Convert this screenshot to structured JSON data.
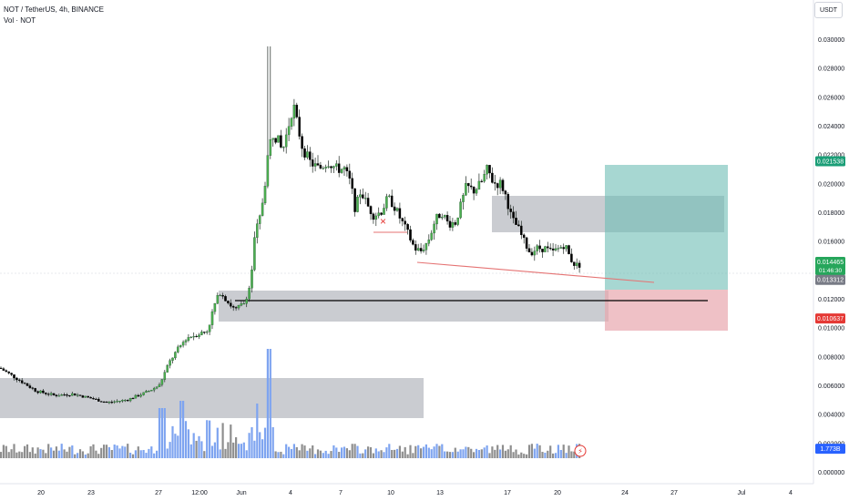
{
  "header": {
    "symbol_line": "NOT / TetherUS, 4h, BINANCE",
    "volume_line": "Vol · NOT"
  },
  "unit_button": "USDT",
  "colors": {
    "up": "#ffffff",
    "up_outline": "#1e4d2b",
    "up_fill": "#4caf50",
    "down": "#000000",
    "vol_up": "#7ea4f0",
    "vol_down": "#8e8e8e",
    "zone": "#8a8f99",
    "target": "#6cbdb4",
    "stop": "#e8a6ae",
    "trendline": "#e57373"
  },
  "price_axis": {
    "ticks": [
      "0.030000",
      "0.028000",
      "0.026000",
      "0.024000",
      "0.022000",
      "0.020000",
      "0.018000",
      "0.016000",
      "0.014000",
      "0.012000",
      "0.010000",
      "0.008000",
      "0.006000",
      "0.004000",
      "0.002000",
      "0.000000"
    ],
    "badges": [
      {
        "label": "0.021538",
        "value": 0.021538,
        "color": "#1b9e77"
      },
      {
        "label": "0.014465",
        "sub": "01:46:30",
        "value": 0.014465,
        "color": "#26a65b"
      },
      {
        "label": "0.013312",
        "value": 0.013312,
        "color": "#787b86"
      },
      {
        "label": "0.010637",
        "value": 0.010637,
        "color": "#e53935"
      },
      {
        "label": "1.773B",
        "value": 0.0016,
        "color": "#2962ff"
      }
    ]
  },
  "time_axis": {
    "ticks": [
      "20",
      "23",
      "27",
      "12:00",
      "Jun",
      "4",
      "7",
      "10",
      "13",
      "17",
      "20",
      "24",
      "27",
      "Jul",
      "4"
    ]
  },
  "chart_data": {
    "type": "candlestick",
    "title": "NOT / TetherUS, 4h, BINANCE",
    "ylim": [
      0,
      0.031
    ],
    "key_prices": [
      {
        "name": "target",
        "value": 0.021538
      },
      {
        "name": "entry",
        "value": 0.013312
      },
      {
        "name": "stop",
        "value": 0.010637
      },
      {
        "name": "last",
        "value": 0.014465
      }
    ],
    "price_path": [
      [
        0,
        0.0072
      ],
      [
        20,
        0.0064
      ],
      [
        40,
        0.0056
      ],
      [
        60,
        0.0053
      ],
      [
        80,
        0.0054
      ],
      [
        100,
        0.0051
      ],
      [
        118,
        0.0048
      ],
      [
        140,
        0.005
      ],
      [
        160,
        0.0055
      ],
      [
        175,
        0.006
      ],
      [
        185,
        0.0075
      ],
      [
        195,
        0.0085
      ],
      [
        205,
        0.0093
      ],
      [
        215,
        0.0095
      ],
      [
        228,
        0.0098
      ],
      [
        235,
        0.0115
      ],
      [
        242,
        0.0125
      ],
      [
        250,
        0.0118
      ],
      [
        258,
        0.0112
      ],
      [
        268,
        0.0117
      ],
      [
        275,
        0.013
      ],
      [
        280,
        0.0165
      ],
      [
        285,
        0.0175
      ],
      [
        290,
        0.0195
      ],
      [
        295,
        0.0225
      ],
      [
        300,
        0.0235
      ],
      [
        305,
        0.023
      ],
      [
        310,
        0.0222
      ],
      [
        316,
        0.0238
      ],
      [
        322,
        0.0255
      ],
      [
        326,
        0.0242
      ],
      [
        332,
        0.0225
      ],
      [
        340,
        0.0215
      ],
      [
        350,
        0.021
      ],
      [
        360,
        0.0215
      ],
      [
        370,
        0.021
      ],
      [
        378,
        0.021
      ],
      [
        385,
        0.02
      ],
      [
        390,
        0.0182
      ],
      [
        396,
        0.0195
      ],
      [
        403,
        0.0185
      ],
      [
        410,
        0.0178
      ],
      [
        418,
        0.018
      ],
      [
        426,
        0.019
      ],
      [
        432,
        0.0185
      ],
      [
        440,
        0.0175
      ],
      [
        448,
        0.0165
      ],
      [
        455,
        0.0155
      ],
      [
        462,
        0.0153
      ],
      [
        470,
        0.016
      ],
      [
        478,
        0.0175
      ],
      [
        485,
        0.018
      ],
      [
        492,
        0.0172
      ],
      [
        500,
        0.0173
      ],
      [
        506,
        0.0185
      ],
      [
        512,
        0.0198
      ],
      [
        520,
        0.0195
      ],
      [
        528,
        0.02
      ],
      [
        535,
        0.021
      ],
      [
        542,
        0.02
      ],
      [
        550,
        0.02
      ],
      [
        556,
        0.019
      ],
      [
        562,
        0.0175
      ],
      [
        568,
        0.017
      ],
      [
        575,
        0.016
      ],
      [
        582,
        0.0152
      ],
      [
        590,
        0.0155
      ],
      [
        598,
        0.0155
      ],
      [
        606,
        0.0152
      ],
      [
        614,
        0.0155
      ],
      [
        620,
        0.0158
      ],
      [
        626,
        0.0148
      ],
      [
        632,
        0.0143
      ],
      [
        638,
        0.0144
      ]
    ]
  }
}
